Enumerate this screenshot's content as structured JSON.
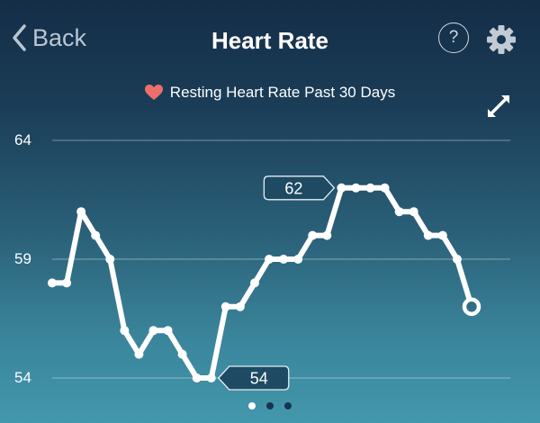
{
  "nav": {
    "back_label": "Back",
    "title": "Heart Rate",
    "help_glyph": "?"
  },
  "subtitle": "Resting Heart Rate Past 30 Days",
  "colors": {
    "heart": "#ec6f6a",
    "line": "#ffffff",
    "tag_fill": "#1e4a63",
    "grid": "rgba(255,255,255,0.28)",
    "dot_inactive": "#163450",
    "dot_active": "#ffffff"
  },
  "icons": {
    "back": "chevron-left-icon",
    "help": "question-circle-icon",
    "settings": "gear-icon",
    "heart": "heart-icon",
    "expand": "expand-arrows-icon"
  },
  "annotations": {
    "max_label": "62",
    "min_label": "54"
  },
  "pager": {
    "count": 3,
    "active": 0
  },
  "chart_data": {
    "type": "line",
    "title": "Resting Heart Rate Past 30 Days",
    "xlabel": "",
    "ylabel": "",
    "ylim": [
      54,
      64
    ],
    "yticks": [
      54,
      59,
      64
    ],
    "grid": true,
    "x": [
      1,
      2,
      3,
      4,
      5,
      6,
      7,
      8,
      9,
      10,
      11,
      12,
      13,
      14,
      15,
      16,
      17,
      18,
      19,
      20,
      21,
      22,
      23,
      24,
      25,
      26,
      27,
      28,
      29,
      30
    ],
    "values": [
      58,
      58,
      61,
      60,
      59,
      56,
      55,
      56,
      56,
      55,
      54,
      54,
      57,
      57,
      58,
      59,
      59,
      59,
      60,
      60,
      62,
      62,
      62,
      62,
      61,
      61,
      60,
      60,
      59,
      57
    ],
    "annotations": [
      {
        "x": 12,
        "value": 54,
        "label": "54"
      },
      {
        "x": 21,
        "value": 62,
        "label": "62"
      }
    ],
    "legend": null
  }
}
